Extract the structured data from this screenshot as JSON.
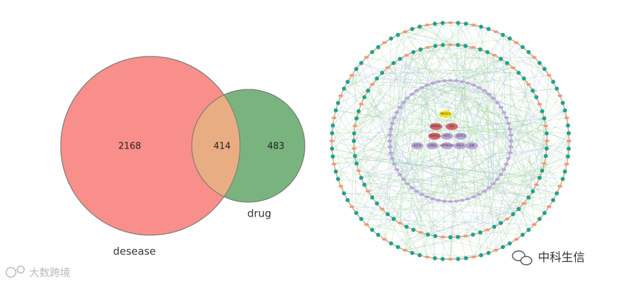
{
  "venn": {
    "sets": [
      {
        "label": "desease",
        "count_only": 2168
      },
      {
        "label": "drug",
        "count_only": 483
      }
    ],
    "overlap": 414
  },
  "network": {
    "nodes": [
      "PIK3CA",
      "MAPK1",
      "SRC",
      "MAPK3",
      "AKT1",
      "STAT3",
      "EGFR",
      "GRB2",
      "HSP90AA1",
      "RELA",
      "JUN"
    ]
  },
  "watermarks": {
    "left": "大数跨境",
    "right": "中科生信"
  }
}
